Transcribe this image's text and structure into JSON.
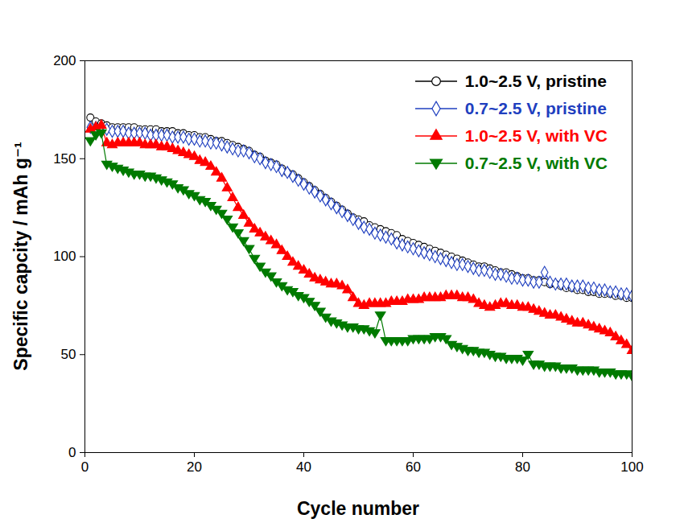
{
  "chart_data": {
    "type": "line",
    "x_label": "Cycle number",
    "y_label": "Specific capcity / mAh g⁻¹",
    "x": [
      1,
      2,
      3,
      4,
      5,
      6,
      7,
      8,
      9,
      10,
      11,
      12,
      13,
      14,
      15,
      16,
      17,
      18,
      19,
      20,
      21,
      22,
      23,
      24,
      25,
      26,
      27,
      28,
      29,
      30,
      31,
      32,
      33,
      34,
      35,
      36,
      37,
      38,
      39,
      40,
      41,
      42,
      43,
      44,
      45,
      46,
      47,
      48,
      49,
      50,
      51,
      52,
      53,
      54,
      55,
      56,
      57,
      58,
      59,
      60,
      61,
      62,
      63,
      64,
      65,
      66,
      67,
      68,
      69,
      70,
      71,
      72,
      73,
      74,
      75,
      76,
      77,
      78,
      79,
      80,
      81,
      82,
      83,
      84,
      85,
      86,
      87,
      88,
      89,
      90,
      91,
      92,
      93,
      94,
      95,
      96,
      97,
      98,
      99,
      100
    ],
    "xlim": [
      0,
      100
    ],
    "xticks": [
      0,
      20,
      40,
      60,
      80,
      100
    ],
    "ylim": [
      0,
      200
    ],
    "yticks": [
      0,
      50,
      100,
      150,
      200
    ],
    "grid": false,
    "legend": "top-right",
    "series": [
      {
        "name": "1.0~2.5 V, pristine",
        "color": "#000000",
        "marker": "circle-open",
        "values": [
          171,
          169,
          168,
          167,
          166,
          166,
          166,
          166,
          166,
          165,
          165,
          165,
          165,
          164,
          164,
          164,
          163,
          163,
          162,
          162,
          161,
          161,
          160,
          159,
          159,
          158,
          157,
          156,
          155,
          154,
          152,
          151,
          149,
          148,
          147,
          145,
          143,
          142,
          140,
          138,
          136,
          134,
          132,
          130,
          128,
          126,
          124,
          122,
          120,
          119,
          118,
          116,
          115,
          114,
          113,
          112,
          111,
          109,
          108,
          107,
          106,
          105,
          104,
          103,
          102,
          101,
          100,
          99,
          98,
          97,
          96,
          95,
          95,
          94,
          93,
          92,
          92,
          91,
          90,
          89,
          89,
          88,
          88,
          87,
          86,
          86,
          85,
          84,
          84,
          83,
          83,
          82,
          82,
          81,
          81,
          81,
          80,
          80,
          79,
          79
        ]
      },
      {
        "name": "0.7~2.5 V, pristine",
        "color": "#1f3fbf",
        "marker": "diamond-open",
        "values": [
          166,
          166,
          165,
          165,
          164,
          164,
          164,
          163,
          163,
          163,
          163,
          162,
          162,
          162,
          162,
          161,
          161,
          161,
          160,
          160,
          159,
          159,
          158,
          158,
          157,
          156,
          155,
          154,
          154,
          153,
          151,
          150,
          148,
          147,
          146,
          144,
          143,
          141,
          139,
          137,
          135,
          133,
          131,
          129,
          127,
          125,
          123,
          121,
          119,
          117,
          115,
          114,
          112,
          111,
          110,
          109,
          107,
          106,
          105,
          104,
          103,
          102,
          101,
          100,
          99,
          98,
          97,
          96,
          96,
          95,
          94,
          93,
          93,
          92,
          91,
          91,
          90,
          89,
          89,
          88,
          88,
          87,
          87,
          92,
          87,
          86,
          86,
          86,
          85,
          85,
          85,
          84,
          84,
          83,
          83,
          82,
          82,
          81,
          81,
          80
        ]
      },
      {
        "name": "1.0~2.5 V, with VC",
        "color": "#ff0000",
        "marker": "triangle",
        "values": [
          165,
          166,
          167,
          158,
          157,
          158,
          158,
          158,
          158,
          158,
          157,
          157,
          157,
          156,
          156,
          155,
          154,
          153,
          152,
          151,
          149,
          148,
          146,
          143,
          140,
          135,
          130,
          125,
          121,
          117,
          114,
          112,
          110,
          108,
          106,
          103,
          100,
          97,
          95,
          93,
          91,
          89,
          88,
          87,
          86,
          86,
          85,
          83,
          79,
          76,
          75,
          76,
          76,
          76,
          76,
          77,
          77,
          77,
          78,
          78,
          78,
          79,
          79,
          79,
          79,
          80,
          80,
          80,
          79,
          79,
          78,
          76,
          75,
          74,
          75,
          76,
          76,
          75,
          75,
          74,
          74,
          73,
          72,
          71,
          70,
          70,
          69,
          68,
          67,
          66,
          66,
          65,
          64,
          63,
          62,
          61,
          59,
          57,
          55,
          52
        ]
      },
      {
        "name": "0.7~2.5 V, with VC",
        "color": "#007a00",
        "marker": "triangle-down",
        "values": [
          159,
          162,
          163,
          147,
          146,
          145,
          144,
          143,
          142,
          142,
          141,
          141,
          140,
          139,
          138,
          137,
          135,
          134,
          132,
          131,
          129,
          128,
          126,
          124,
          122,
          119,
          115,
          112,
          108,
          104,
          99,
          95,
          92,
          90,
          87,
          85,
          83,
          82,
          80,
          79,
          77,
          75,
          72,
          69,
          67,
          66,
          65,
          64,
          64,
          63,
          63,
          62,
          61,
          70,
          57,
          57,
          57,
          57,
          57,
          58,
          58,
          58,
          58,
          59,
          59,
          58,
          55,
          54,
          53,
          52,
          52,
          51,
          51,
          50,
          49,
          49,
          48,
          48,
          48,
          47,
          50,
          45,
          45,
          44,
          44,
          44,
          43,
          43,
          43,
          42,
          42,
          42,
          42,
          41,
          41,
          41,
          40,
          40,
          40,
          39
        ]
      }
    ]
  }
}
